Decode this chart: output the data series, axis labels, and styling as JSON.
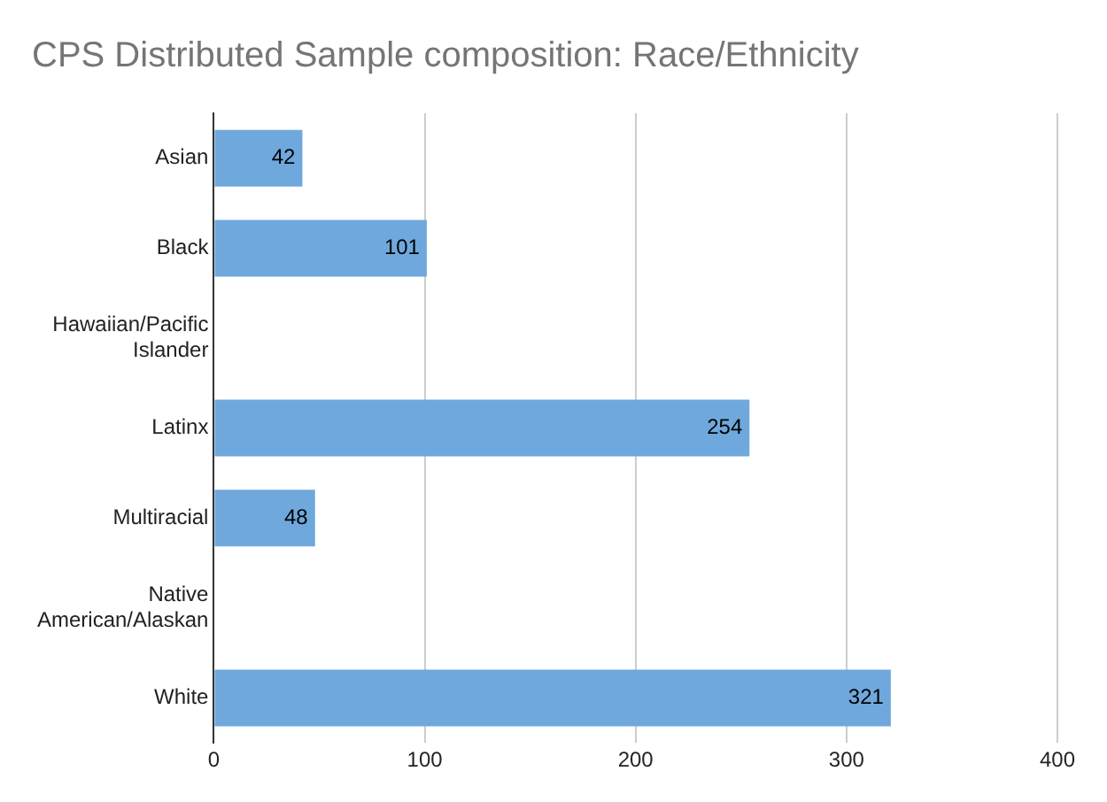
{
  "chart_data": {
    "type": "bar",
    "orientation": "horizontal",
    "title": "CPS Distributed Sample composition: Race/Ethnicity",
    "categories": [
      "Asian",
      "Black",
      "Hawaiian/Pacific Islander",
      "Latinx",
      "Multiracial",
      "Native American/Alaskan",
      "White"
    ],
    "values": [
      42,
      101,
      null,
      254,
      48,
      null,
      321
    ],
    "color": "#6fa8dc",
    "xlim": [
      0,
      400
    ],
    "xticks": [
      0,
      100,
      200,
      300,
      400
    ],
    "grid": "x",
    "data_labels": true,
    "legend": false
  }
}
